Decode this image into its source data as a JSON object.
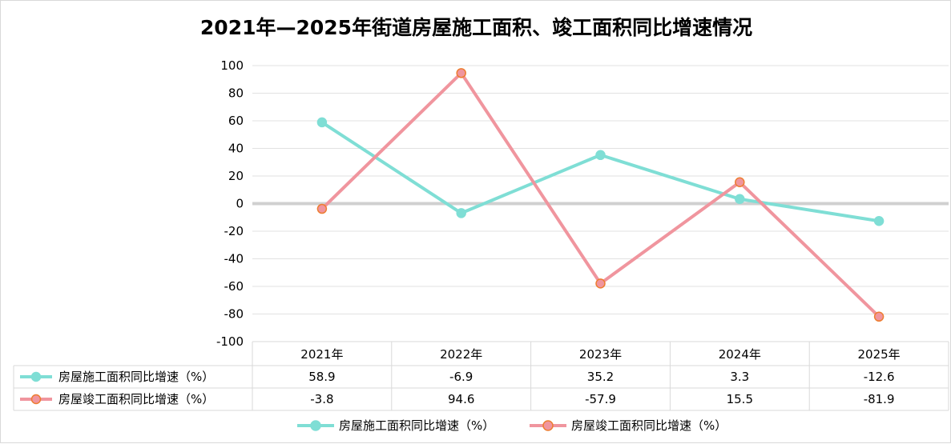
{
  "chart_data": {
    "type": "line",
    "title": "2021年—2025年街道房屋施工面积、竣工面积同比增速情况",
    "categories": [
      "2021年",
      "2022年",
      "2023年",
      "2024年",
      "2025年"
    ],
    "ylim": [
      -100,
      100
    ],
    "yticks": [
      "100",
      "80",
      "60",
      "40",
      "20",
      "0",
      "-20",
      "-40",
      "-60",
      "-80",
      "-100"
    ],
    "grid": true,
    "legend": "bottom",
    "data_table": true,
    "series": [
      {
        "name": "房屋施工面积同比增速（%）",
        "values": [
          58.9,
          -6.9,
          35.2,
          3.3,
          -12.6
        ],
        "color": "#7fded5",
        "marker_edge": "#7fded5"
      },
      {
        "name": "房屋竣工面积同比增速（%）",
        "values": [
          -3.8,
          94.6,
          -57.9,
          15.5,
          -81.9
        ],
        "color": "#f0959e",
        "marker_edge": "#ed7d31"
      }
    ],
    "value_labels": [
      [
        "58.9",
        "-6.9",
        "35.2",
        "3.3",
        "-12.6"
      ],
      [
        "-3.8",
        "94.6",
        "-57.9",
        "15.5",
        "-81.9"
      ]
    ]
  }
}
